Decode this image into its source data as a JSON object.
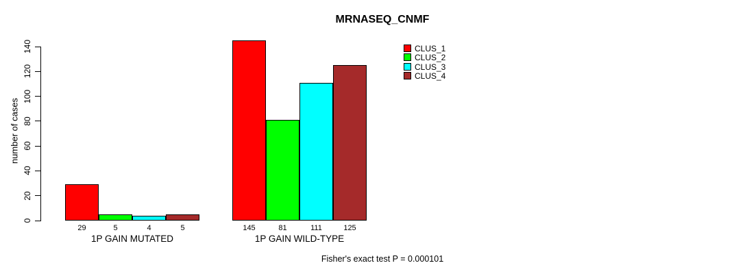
{
  "chart_data": {
    "type": "bar",
    "title": "MRNASEQ_CNMF",
    "xlabel": "",
    "ylabel": "number of cases",
    "ylim": [
      0,
      145
    ],
    "yticks": [
      0,
      20,
      40,
      60,
      80,
      100,
      120,
      140
    ],
    "grid": false,
    "legend_position": "top-right-inside",
    "bar_value_labels_shown": true,
    "categories": [
      "1P GAIN MUTATED",
      "1P GAIN WILD-TYPE"
    ],
    "series": [
      {
        "name": "CLUS_1",
        "color": "#FF0000",
        "values": [
          29,
          145
        ]
      },
      {
        "name": "CLUS_2",
        "color": "#00FF00",
        "values": [
          5,
          81
        ]
      },
      {
        "name": "CLUS_3",
        "color": "#00FFFF",
        "values": [
          4,
          111
        ]
      },
      {
        "name": "CLUS_4",
        "color": "#A52A2A",
        "values": [
          5,
          125
        ]
      }
    ],
    "annotation": "Fisher's exact test P = 0.000101",
    "axis_color": "#000000",
    "bar_border_color": "#000000"
  }
}
